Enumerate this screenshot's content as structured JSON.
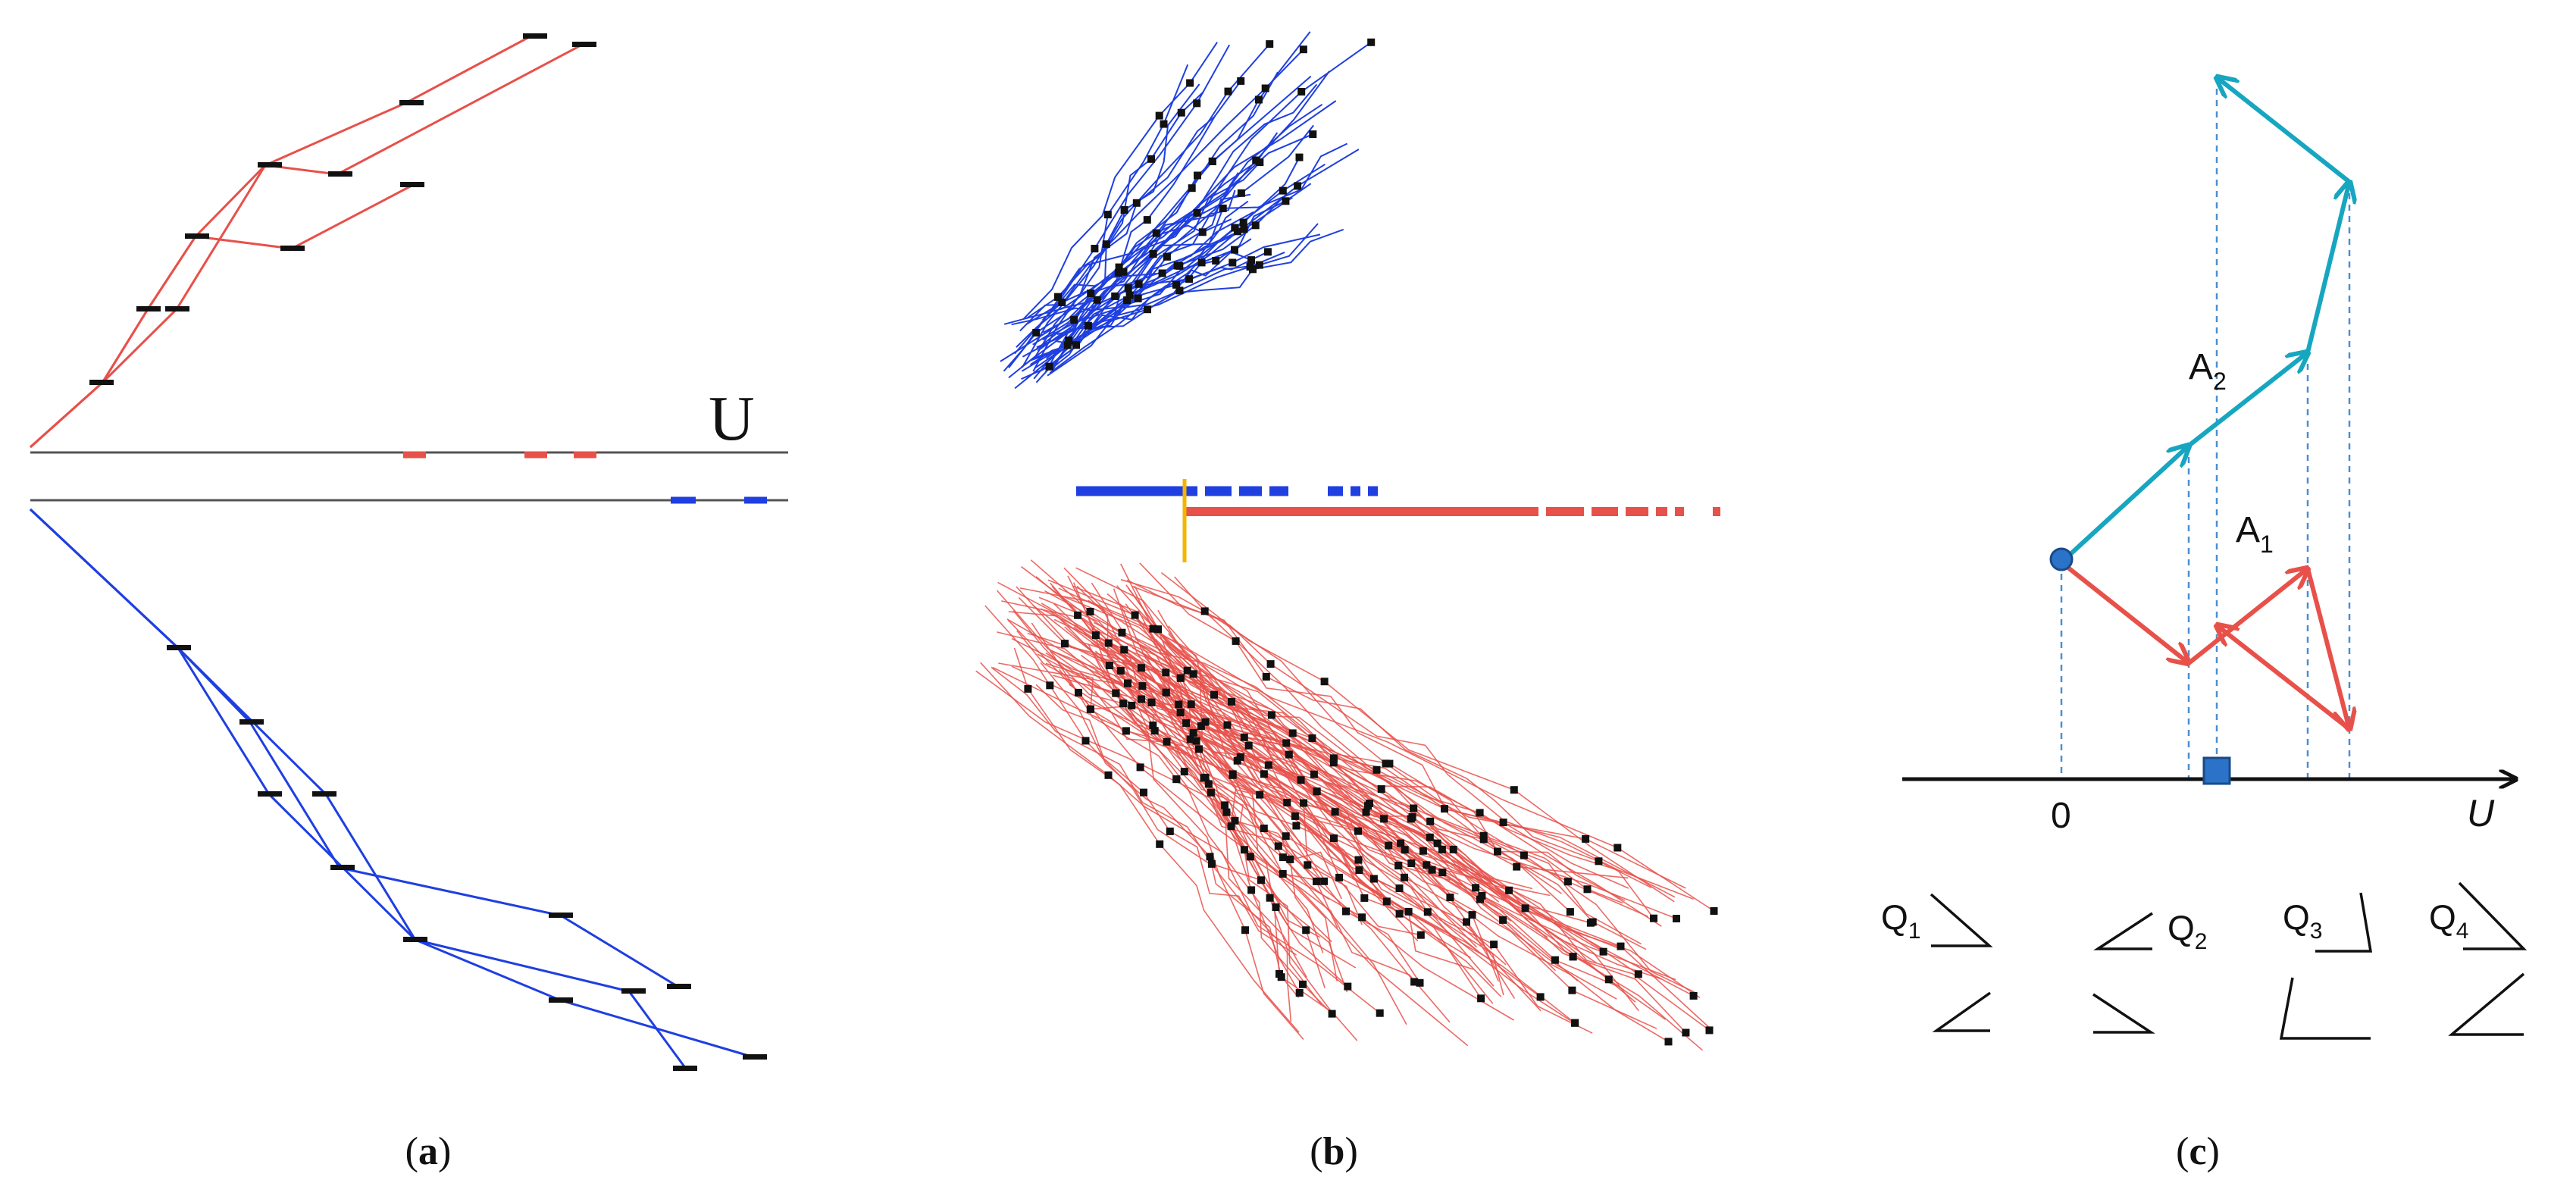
{
  "figure": {
    "colors": {
      "red": "#e8504a",
      "blue": "#1f3fe0",
      "teal": "#17a6c0",
      "orange": "#f5b400",
      "black": "#111111",
      "gray": "#555555"
    },
    "captions": {
      "a": "a",
      "b": "b",
      "c": "c"
    },
    "panel_a": {
      "axis_label": "U"
    },
    "panel_c": {
      "origin_label": "0",
      "axis_label": "U",
      "vector_labels": {
        "a2": "A",
        "a2_sub": "2",
        "a1": "A",
        "a1_sub": "1"
      },
      "quadrant_labels": [
        {
          "q": "Q",
          "sub": "1"
        },
        {
          "q": "Q",
          "sub": "2"
        },
        {
          "q": "Q",
          "sub": "3"
        },
        {
          "q": "Q",
          "sub": "4"
        }
      ]
    }
  }
}
